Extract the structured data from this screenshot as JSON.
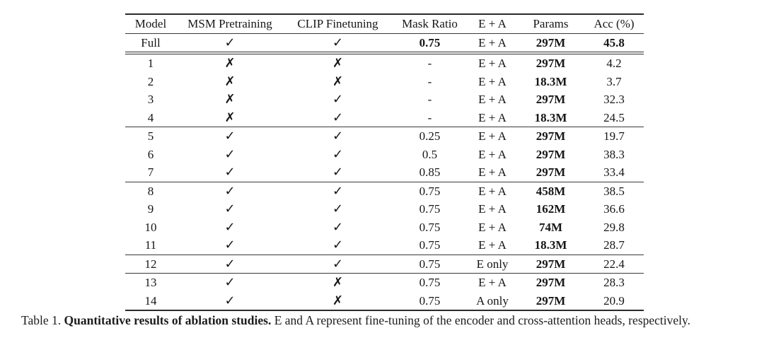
{
  "glyphs": {
    "check": "✓",
    "cross": "✗"
  },
  "table": {
    "columns": [
      "Model",
      "MSM Pretraining",
      "CLIP Finetuning",
      "Mask Ratio",
      "E + A",
      "Params",
      "Acc (%)"
    ],
    "rows": [
      {
        "model": "Full",
        "msm": "check",
        "clip": "check",
        "mask": "0.75",
        "ea": "E + A",
        "params": "297M",
        "acc": "45.8",
        "emph": true,
        "rule_below": "double"
      },
      {
        "model": "1",
        "msm": "cross",
        "clip": "cross",
        "mask": "-",
        "ea": "E + A",
        "params": "297M",
        "acc": "4.2",
        "emph": false,
        "rule_below": ""
      },
      {
        "model": "2",
        "msm": "cross",
        "clip": "cross",
        "mask": "-",
        "ea": "E + A",
        "params": "18.3M",
        "acc": "3.7",
        "emph": false,
        "rule_below": ""
      },
      {
        "model": "3",
        "msm": "cross",
        "clip": "check",
        "mask": "-",
        "ea": "E + A",
        "params": "297M",
        "acc": "32.3",
        "emph": false,
        "rule_below": ""
      },
      {
        "model": "4",
        "msm": "cross",
        "clip": "check",
        "mask": "-",
        "ea": "E + A",
        "params": "18.3M",
        "acc": "24.5",
        "emph": false,
        "rule_below": "single"
      },
      {
        "model": "5",
        "msm": "check",
        "clip": "check",
        "mask": "0.25",
        "ea": "E + A",
        "params": "297M",
        "acc": "19.7",
        "emph": false,
        "rule_below": ""
      },
      {
        "model": "6",
        "msm": "check",
        "clip": "check",
        "mask": "0.5",
        "ea": "E + A",
        "params": "297M",
        "acc": "38.3",
        "emph": false,
        "rule_below": ""
      },
      {
        "model": "7",
        "msm": "check",
        "clip": "check",
        "mask": "0.85",
        "ea": "E + A",
        "params": "297M",
        "acc": "33.4",
        "emph": false,
        "rule_below": "single"
      },
      {
        "model": "8",
        "msm": "check",
        "clip": "check",
        "mask": "0.75",
        "ea": "E + A",
        "params": "458M",
        "acc": "38.5",
        "emph": false,
        "rule_below": ""
      },
      {
        "model": "9",
        "msm": "check",
        "clip": "check",
        "mask": "0.75",
        "ea": "E + A",
        "params": "162M",
        "acc": "36.6",
        "emph": false,
        "rule_below": ""
      },
      {
        "model": "10",
        "msm": "check",
        "clip": "check",
        "mask": "0.75",
        "ea": "E + A",
        "params": "74M",
        "acc": "29.8",
        "emph": false,
        "rule_below": ""
      },
      {
        "model": "11",
        "msm": "check",
        "clip": "check",
        "mask": "0.75",
        "ea": "E + A",
        "params": "18.3M",
        "acc": "28.7",
        "emph": false,
        "rule_below": "single"
      },
      {
        "model": "12",
        "msm": "check",
        "clip": "check",
        "mask": "0.75",
        "ea": "E only",
        "params": "297M",
        "acc": "22.4",
        "emph": false,
        "rule_below": "single"
      },
      {
        "model": "13",
        "msm": "check",
        "clip": "cross",
        "mask": "0.75",
        "ea": "E + A",
        "params": "297M",
        "acc": "28.3",
        "emph": false,
        "rule_below": ""
      },
      {
        "model": "14",
        "msm": "check",
        "clip": "cross",
        "mask": "0.75",
        "ea": "A only",
        "params": "297M",
        "acc": "20.9",
        "emph": false,
        "rule_below": "bottom"
      }
    ]
  },
  "caption": {
    "prefix": "Table 1. ",
    "bold": "Quantitative results of ablation studies.",
    "rest": " E and A represent fine-tuning of the encoder and cross-attention heads, respectively."
  }
}
